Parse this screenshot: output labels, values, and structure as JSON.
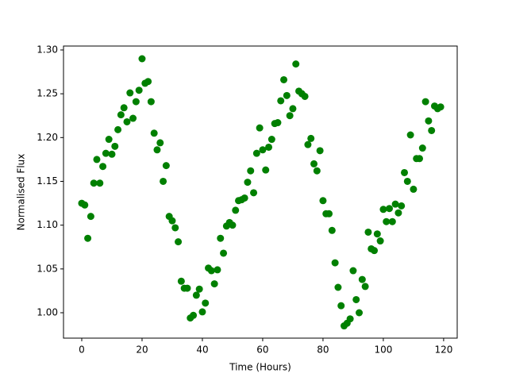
{
  "chart_data": {
    "type": "scatter",
    "xlabel": "Time (Hours)",
    "ylabel": "Normalised Flux",
    "color": "#008000",
    "x": [
      0,
      1,
      2,
      3,
      4,
      5,
      6,
      7,
      8,
      9,
      10,
      11,
      12,
      13,
      14,
      15,
      16,
      17,
      18,
      19,
      20,
      21,
      22,
      23,
      24,
      25,
      26,
      27,
      28,
      29,
      30,
      31,
      32,
      33,
      34,
      35,
      36,
      37,
      38,
      39,
      40,
      41,
      42,
      43,
      44,
      45,
      46,
      47,
      48,
      49,
      50,
      51,
      52,
      53,
      54,
      55,
      56,
      57,
      58,
      59,
      60,
      61,
      62,
      63,
      64,
      65,
      66,
      67,
      68,
      69,
      70,
      71,
      72,
      73,
      74,
      75,
      76,
      77,
      78,
      79,
      80,
      81,
      82,
      83,
      84,
      85,
      86,
      87,
      88,
      89,
      90,
      91,
      92,
      93,
      94,
      95,
      96,
      97,
      98,
      99,
      100,
      101,
      102,
      103,
      104,
      105,
      106,
      107,
      108,
      109,
      110,
      111,
      112,
      113,
      114,
      115,
      116,
      117,
      118,
      119
    ],
    "values": [
      1.125,
      1.123,
      1.085,
      1.11,
      1.148,
      1.175,
      1.148,
      1.167,
      1.182,
      1.198,
      1.181,
      1.19,
      1.209,
      1.226,
      1.234,
      1.218,
      1.251,
      1.222,
      1.241,
      1.254,
      1.29,
      1.262,
      1.264,
      1.241,
      1.205,
      1.186,
      1.194,
      1.15,
      1.168,
      1.11,
      1.105,
      1.097,
      1.081,
      1.036,
      1.028,
      1.028,
      0.994,
      0.997,
      1.02,
      1.027,
      1.001,
      1.011,
      1.051,
      1.048,
      1.033,
      1.049,
      1.085,
      1.068,
      1.099,
      1.103,
      1.1,
      1.117,
      1.128,
      1.129,
      1.131,
      1.149,
      1.162,
      1.137,
      1.182,
      1.211,
      1.186,
      1.163,
      1.189,
      1.198,
      1.216,
      1.217,
      1.242,
      1.266,
      1.248,
      1.225,
      1.233,
      1.284,
      1.253,
      1.25,
      1.247,
      1.192,
      1.199,
      1.17,
      1.162,
      1.185,
      1.128,
      1.113,
      1.113,
      1.094,
      1.057,
      1.029,
      1.008,
      0.985,
      0.988,
      0.993,
      1.048,
      1.015,
      1.0,
      1.038,
      1.03,
      1.092,
      1.073,
      1.071,
      1.09,
      1.082,
      1.118,
      1.104,
      1.119,
      1.104,
      1.124,
      1.114,
      1.122,
      1.16,
      1.15,
      1.203,
      1.141,
      1.176,
      1.176,
      1.188,
      1.241,
      1.219,
      1.208,
      1.236,
      1.233,
      1.235
    ],
    "xlim": [
      -6.05,
      124.5
    ],
    "ylim": [
      0.971,
      1.3045
    ],
    "xticks": [
      0,
      20,
      40,
      60,
      80,
      100,
      120
    ],
    "yticks": [
      {
        "value": 1,
        "label": "1.00"
      },
      1.05,
      {
        "value": 1.1,
        "label": "1.10"
      },
      1.15,
      {
        "value": 1.2,
        "label": "1.20"
      },
      1.25,
      {
        "value": 1.3,
        "label": "1.30"
      }
    ]
  }
}
